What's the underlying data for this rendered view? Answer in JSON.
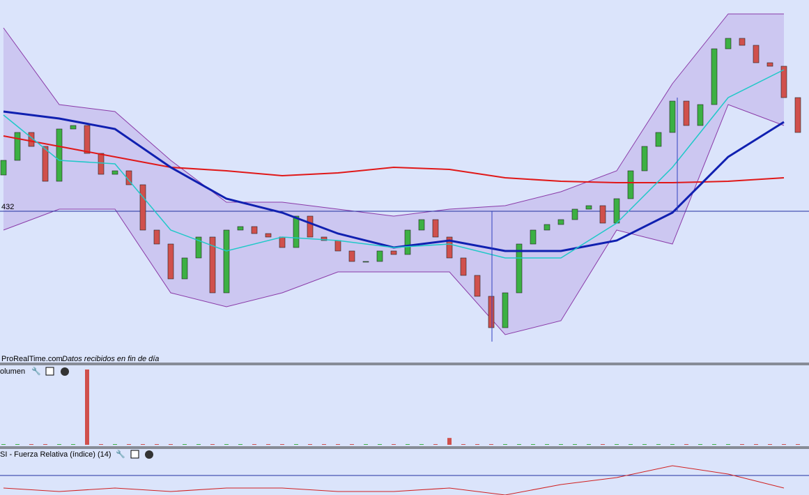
{
  "chart_data": {
    "type": "candlestick",
    "ylim": [
      377.75,
      507.75
    ],
    "open": [
      445,
      450.25,
      460.25,
      455.25,
      442.75,
      461.5,
      462.75,
      452.75,
      445.25,
      446.5,
      441.5,
      425.25,
      420.25,
      407.75,
      415.25,
      422.75,
      402.75,
      425.25,
      426.5,
      424,
      422.75,
      419,
      430.25,
      422.75,
      421.5,
      417.75,
      414,
      414,
      417.75,
      416.5,
      425.25,
      429,
      422.75,
      415.25,
      409,
      401.5,
      390.25,
      402.75,
      420.25,
      425.25,
      427.25,
      429,
      432.75,
      434,
      427.75,
      436.5,
      446.5,
      455.25,
      460.25,
      471.5,
      462.75,
      470.25,
      490.25,
      494,
      491.5,
      485.25,
      484,
      472.75
    ],
    "close": [
      450.25,
      460.25,
      455.25,
      442.75,
      461.5,
      462.75,
      452.75,
      445.25,
      446.5,
      441.5,
      425.25,
      420.25,
      407.75,
      415.25,
      422.75,
      402.75,
      425.25,
      426.5,
      424,
      422.75,
      419,
      430.25,
      422.75,
      421.5,
      417.75,
      414,
      414,
      417.75,
      416.5,
      425.25,
      429,
      422.75,
      415.25,
      409,
      401.5,
      390.25,
      402.75,
      420.25,
      425.25,
      427.25,
      429,
      432.75,
      434,
      427.75,
      436.5,
      446.5,
      455.25,
      460.25,
      471.5,
      462.75,
      470.25,
      490.25,
      494,
      491.5,
      485.25,
      484,
      472.75,
      460.25
    ],
    "up_color": "#3cb043",
    "down_color": "#d0504c",
    "reference_value": 432,
    "line_x": [
      0,
      4,
      8,
      12,
      16,
      20,
      24,
      28,
      32,
      36,
      40,
      44,
      48,
      52,
      56
    ],
    "band": {
      "color": "#c9c2ef",
      "edge_color": "#8a3aa8",
      "upper": [
        497.75,
        470.25,
        467.75,
        450.25,
        435.25,
        435.25,
        432.75,
        430.25,
        432.75,
        434,
        439,
        446.5,
        477.75,
        502.75,
        502.75
      ],
      "lower": [
        425.25,
        432.75,
        432.75,
        402.75,
        397.75,
        402.75,
        410.25,
        410.25,
        410.25,
        387.75,
        392.75,
        425.25,
        420.25,
        470.25,
        462.75
      ]
    },
    "lines": [
      {
        "color": "#e01818",
        "width": 2,
        "values": [
          459,
          455.25,
          451.5,
          447.75,
          446.5,
          444.75,
          445.75,
          447.75,
          447,
          444,
          442.75,
          442.25,
          442.25,
          442.75,
          444
        ]
      },
      {
        "color": "#1020b0",
        "width": 3,
        "values": [
          467.75,
          465.25,
          461.5,
          447.75,
          436.5,
          431.5,
          424,
          419,
          421.5,
          417.75,
          417.75,
          421.5,
          431.5,
          451.5,
          464
        ]
      },
      {
        "color": "#20c8c8",
        "width": 1.5,
        "values": [
          466.5,
          450.25,
          449,
          425.25,
          417.75,
          422.75,
          421.5,
          419,
          420.25,
          415.25,
          415.25,
          427.75,
          447.75,
          472.75,
          482.75
        ]
      }
    ]
  },
  "footer": {
    "source": "ProRealTime.com",
    "note": "Datos recibidos en fin de día"
  },
  "volume": {
    "title": "olumen",
    "ylim": [
      0,
      110
    ],
    "values": [
      1,
      1,
      1,
      1,
      1,
      1,
      110,
      1,
      1,
      1,
      1,
      1,
      1,
      1,
      1,
      1,
      1,
      1,
      1,
      1,
      1,
      1,
      1,
      1,
      1,
      1,
      1,
      1,
      1,
      1,
      1,
      1,
      10,
      1,
      1,
      1,
      1,
      1,
      1,
      1,
      1,
      1,
      1,
      1,
      1,
      1,
      1,
      1,
      1,
      1,
      1,
      1,
      1,
      1,
      1,
      1,
      1,
      1
    ]
  },
  "rsi": {
    "title": "SI - Fuerza Relativa (índice) (14)",
    "ylim": [
      42,
      92
    ],
    "reference_value": 70,
    "color": "#d02020",
    "up_color": "#20a020",
    "values": [
      52,
      47,
      52,
      47,
      52,
      52,
      47,
      47,
      52,
      42,
      57,
      67,
      84,
      72,
      52
    ]
  }
}
